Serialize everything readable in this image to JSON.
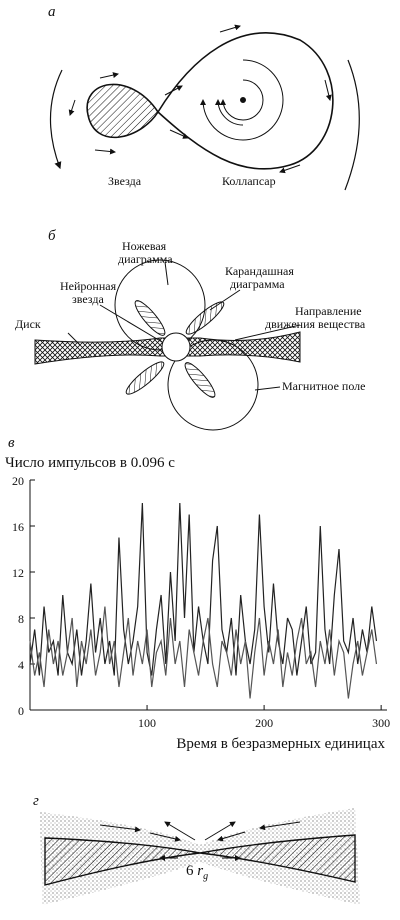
{
  "panels": {
    "a": {
      "label": "а",
      "star": "Звезда",
      "collapsar": "Коллапсар"
    },
    "b": {
      "label": "б",
      "knife": [
        "Ножевая",
        "диаграмма"
      ],
      "pencil": [
        "Карандашная",
        "диаграмма"
      ],
      "neutron": [
        "Нейронная",
        "звезда"
      ],
      "direction": [
        "Направление",
        "движения вещества"
      ],
      "disk": "Диск",
      "field": "Магнитное поле"
    },
    "c": {
      "label": "в"
    },
    "d": {
      "label": "г",
      "gap": "6",
      "symbol": "r",
      "subscript": "g"
    }
  },
  "chart_data": {
    "type": "line",
    "ylabel": "Число импульсов в 0.096 с",
    "xlabel": "Время в безразмерных единицах",
    "xlim": [
      0,
      305
    ],
    "ylim": [
      0,
      20
    ],
    "xticks": [
      100,
      200,
      300
    ],
    "yticks": [
      0,
      4,
      8,
      12,
      16,
      20
    ],
    "x": [
      0,
      4,
      8,
      12,
      16,
      20,
      24,
      28,
      32,
      36,
      40,
      44,
      48,
      52,
      56,
      60,
      64,
      68,
      72,
      76,
      80,
      84,
      88,
      92,
      96,
      100,
      104,
      108,
      112,
      116,
      120,
      124,
      128,
      132,
      136,
      140,
      144,
      148,
      152,
      156,
      160,
      164,
      168,
      172,
      176,
      180,
      184,
      188,
      192,
      196,
      200,
      204,
      208,
      212,
      216,
      220,
      224,
      228,
      232,
      236,
      240,
      244,
      248,
      252,
      256,
      260,
      264,
      268,
      272,
      276,
      280,
      284,
      288,
      292,
      296
    ],
    "series": [
      {
        "color": "#222",
        "values": [
          4,
          7,
          3,
          9,
          5,
          6,
          3,
          10,
          5,
          4,
          7,
          3,
          6,
          11,
          5,
          8,
          4,
          6,
          3,
          15,
          7,
          4,
          6,
          9,
          18,
          5,
          3,
          7,
          10,
          4,
          12,
          6,
          18,
          8,
          17,
          5,
          9,
          6,
          4,
          13,
          16,
          7,
          5,
          8,
          3,
          10,
          6,
          4,
          7,
          17,
          9,
          5,
          11,
          6,
          4,
          8,
          7,
          3,
          6,
          9,
          4,
          5,
          16,
          7,
          4,
          10,
          14,
          6,
          5,
          8,
          4,
          7,
          5,
          9,
          6
        ]
      },
      {
        "color": "#555",
        "values": [
          6,
          3,
          5,
          2,
          7,
          4,
          6,
          3,
          5,
          8,
          2,
          6,
          4,
          7,
          3,
          5,
          9,
          4,
          6,
          2,
          5,
          8,
          3,
          6,
          4,
          7,
          2,
          5,
          6,
          3,
          8,
          4,
          6,
          2,
          7,
          5,
          3,
          6,
          8,
          4,
          2,
          6,
          5,
          3,
          7,
          4,
          6,
          1,
          5,
          8,
          3,
          6,
          4,
          7,
          2,
          5,
          3,
          6,
          8,
          4,
          5,
          2,
          6,
          4,
          7,
          3,
          6,
          5,
          1,
          4,
          6,
          3,
          5,
          7,
          4
        ]
      }
    ]
  }
}
